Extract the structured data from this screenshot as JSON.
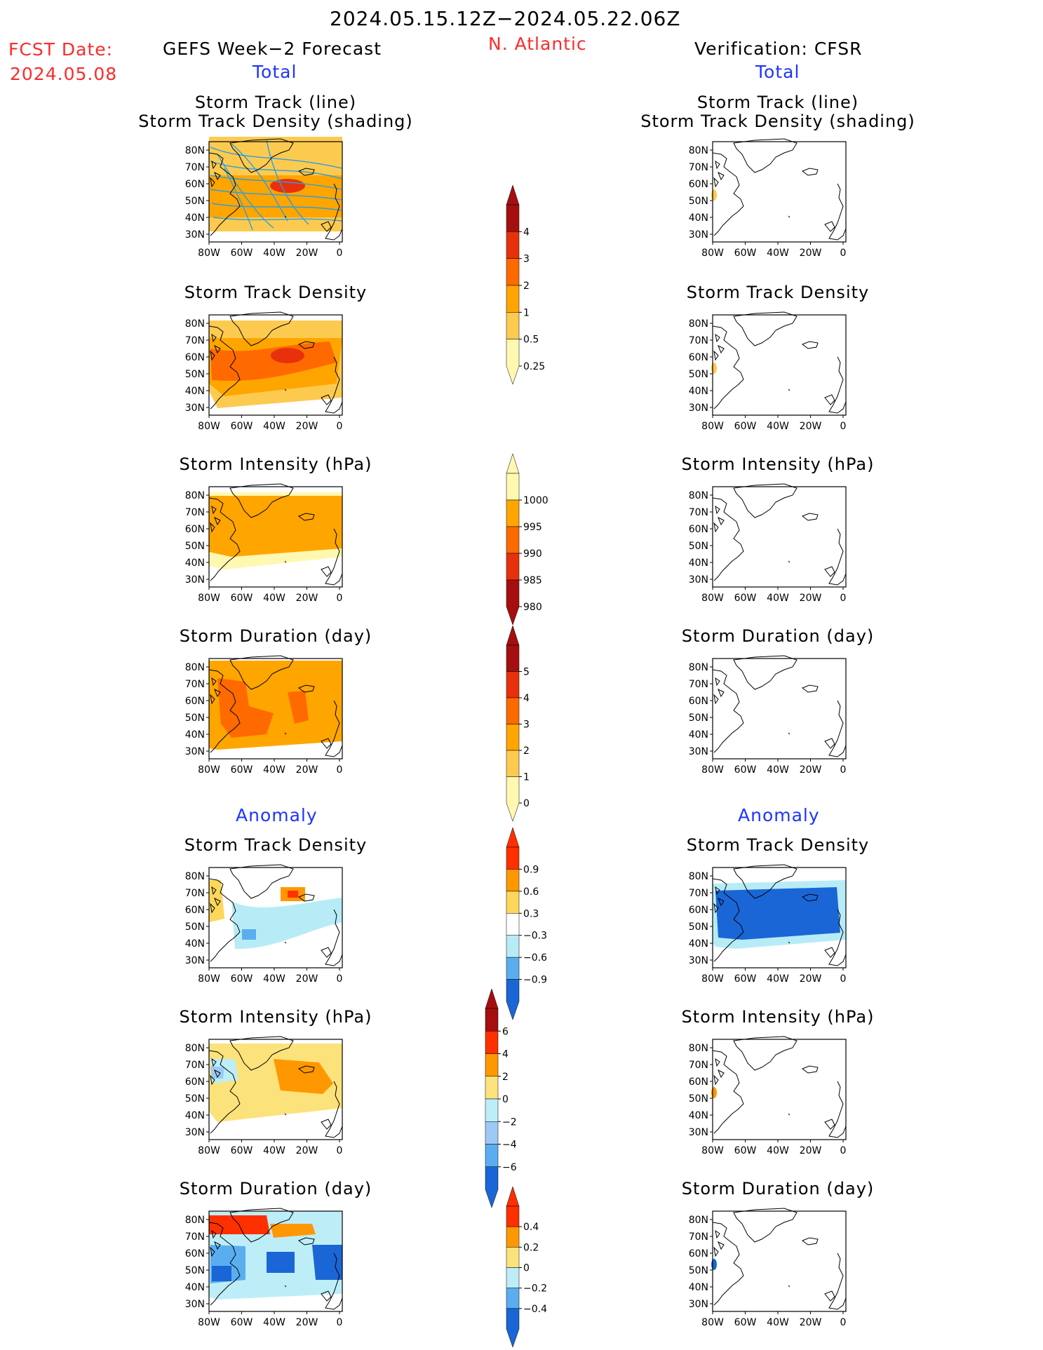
{
  "header": {
    "date_range": "2024.05.15.12Z−2024.05.22.06Z",
    "fcst_label": "FCST Date:",
    "fcst_date": "2024.05.08",
    "left_title": "GEFS Week−2 Forecast",
    "region": "N. Atlantic",
    "right_title": "Verification: CFSR",
    "total_label": "Total"
  },
  "anomaly_label": "Anomaly",
  "map_axes": {
    "lat_labels": [
      "80N",
      "70N",
      "60N",
      "50N",
      "40N",
      "30N"
    ],
    "lon_labels": [
      "80W",
      "60W",
      "40W",
      "20W",
      "0"
    ]
  },
  "panel_titles": {
    "track_line": "Storm Track (line)",
    "track_density_shading": "Storm Track Density (shading)",
    "density": "Storm Track Density",
    "intensity": "Storm Intensity (hPa)",
    "duration": "Storm Duration (day)"
  },
  "colorbars": [
    {
      "labels": [
        "4",
        "3",
        "2",
        "1",
        "0.5",
        "0.25"
      ],
      "colors": [
        "#a50f0f",
        "#e8300d",
        "#ff6a00",
        "#ffa500",
        "#fdca50",
        "#fff8b0"
      ]
    },
    {
      "labels": [
        "1000",
        "995",
        "990",
        "985",
        "980"
      ],
      "colors": [
        "#fff8b0",
        "#ffa500",
        "#ff6a00",
        "#e8300d",
        "#a50f0f"
      ]
    },
    {
      "labels": [
        "5",
        "4",
        "3",
        "2",
        "1",
        "0"
      ],
      "colors": [
        "#a50f0f",
        "#e8300d",
        "#ff6a00",
        "#ffa500",
        "#fdca50",
        "#fff8b0"
      ]
    },
    {
      "labels": [
        "0.9",
        "0.6",
        "0.3",
        "−0.3",
        "−0.6",
        "−0.9"
      ],
      "colors": [
        "#ff3000",
        "#ff9800",
        "#fcd75a",
        "#ffffff",
        "#b7ecf7",
        "#5aaef0",
        "#1a66d6"
      ]
    },
    {
      "labels": [
        "6",
        "4",
        "2",
        "0",
        "−2",
        "−4",
        "−6"
      ],
      "colors": [
        "#a50f0f",
        "#ff3000",
        "#ff9800",
        "#fce27a",
        "#bdeef8",
        "#9ccaf5",
        "#5aaef0",
        "#1a66d6"
      ]
    },
    {
      "labels": [
        "0.4",
        "0.2",
        "0",
        "−0.2",
        "−0.4"
      ],
      "colors": [
        "#ff3000",
        "#ff9800",
        "#fce27a",
        "#bdeef8",
        "#5aaef0",
        "#1a66d6"
      ]
    }
  ]
}
